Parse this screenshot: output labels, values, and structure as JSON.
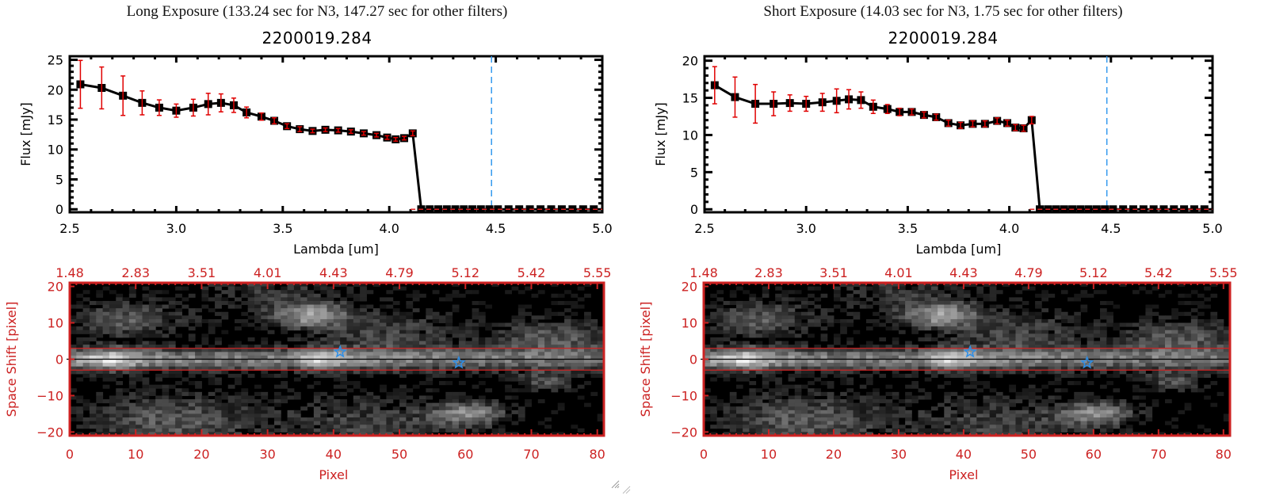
{
  "panels": [
    {
      "id": "long",
      "exposure_title": "Long Exposure (133.24 sec for N3, 147.27 sec for other filters)",
      "object_title": "2200019.284"
    },
    {
      "id": "short",
      "exposure_title": "Short Exposure (14.03 sec for N3, 1.75 sec for other filters)",
      "object_title": "2200019.284"
    }
  ],
  "colors": {
    "axis": "#000000",
    "line": "#000000",
    "marker": "#000000",
    "errorbar": "#e00000",
    "blue_line": "#3399ee",
    "red_dashed": "#dd2222",
    "image_axis": "#cc2222",
    "star": "#2e8ee6"
  },
  "chart_data": [
    {
      "type": "line",
      "panel": "long",
      "title": "2200019.284",
      "xlabel": "Lambda [um]",
      "ylabel": "Flux [mJy]",
      "xlim": [
        2.5,
        5.0
      ],
      "ylim": [
        -0.5,
        25.6
      ],
      "xticks": [
        2.5,
        3.0,
        3.5,
        4.0,
        4.5,
        5.0
      ],
      "xtick_labels": [
        "2.5",
        "3.0",
        "3.5",
        "4.0",
        "4.5",
        "5.0"
      ],
      "yticks": [
        0,
        5,
        10,
        15,
        20,
        25
      ],
      "ytick_labels": [
        "0",
        "5",
        "10",
        "15",
        "20",
        "25"
      ],
      "vline_x": 4.48,
      "hline_y": 0,
      "x": [
        2.55,
        2.65,
        2.75,
        2.84,
        2.92,
        3.0,
        3.08,
        3.15,
        3.21,
        3.27,
        3.33,
        3.4,
        3.46,
        3.52,
        3.58,
        3.64,
        3.7,
        3.76,
        3.82,
        3.88,
        3.94,
        3.99,
        4.03,
        4.07,
        4.11,
        4.15,
        4.19,
        4.23,
        4.27,
        4.31,
        4.35,
        4.39,
        4.43,
        4.47,
        4.51,
        4.56,
        4.61,
        4.66,
        4.71,
        4.76,
        4.81,
        4.86,
        4.91,
        4.96
      ],
      "y": [
        20.9,
        20.3,
        19.0,
        17.8,
        17.0,
        16.5,
        17.0,
        17.6,
        17.8,
        17.4,
        16.2,
        15.5,
        14.8,
        13.9,
        13.4,
        13.1,
        13.3,
        13.2,
        13.0,
        12.7,
        12.4,
        12.0,
        11.7,
        11.9,
        12.7,
        0,
        0,
        0,
        0,
        0,
        0,
        0,
        0,
        0,
        0,
        0,
        0,
        0,
        0,
        0,
        0,
        0,
        0,
        0
      ],
      "yerr": [
        4.0,
        3.5,
        3.3,
        2.0,
        1.3,
        1.1,
        1.4,
        1.8,
        1.5,
        1.2,
        0.9,
        0.6,
        0.5,
        0.4,
        0.4,
        0.3,
        0.3,
        0.3,
        0.3,
        0.3,
        0.3,
        0.3,
        0.3,
        0.3,
        0.4,
        0,
        0,
        0,
        0,
        0,
        0,
        0,
        0,
        0,
        0,
        0,
        0,
        0,
        0,
        0,
        0,
        0,
        0,
        0
      ]
    },
    {
      "type": "line",
      "panel": "short",
      "title": "2200019.284",
      "xlabel": "Lambda [um]",
      "ylabel": "Flux [mJy]",
      "xlim": [
        2.5,
        5.0
      ],
      "ylim": [
        -0.4,
        20.6
      ],
      "xticks": [
        2.5,
        3.0,
        3.5,
        4.0,
        4.5,
        5.0
      ],
      "xtick_labels": [
        "2.5",
        "3.0",
        "3.5",
        "4.0",
        "4.5",
        "5.0"
      ],
      "yticks": [
        0,
        5,
        10,
        15,
        20
      ],
      "ytick_labels": [
        "0",
        "5",
        "10",
        "15",
        "20"
      ],
      "vline_x": 4.48,
      "hline_y": 0,
      "x": [
        2.55,
        2.65,
        2.75,
        2.84,
        2.92,
        3.0,
        3.08,
        3.15,
        3.21,
        3.27,
        3.33,
        3.4,
        3.46,
        3.52,
        3.58,
        3.64,
        3.7,
        3.76,
        3.82,
        3.88,
        3.94,
        3.99,
        4.03,
        4.07,
        4.11,
        4.15,
        4.19,
        4.23,
        4.27,
        4.31,
        4.35,
        4.39,
        4.43,
        4.47,
        4.51,
        4.56,
        4.61,
        4.66,
        4.71,
        4.76,
        4.81,
        4.86,
        4.91,
        4.96
      ],
      "y": [
        16.7,
        15.1,
        14.2,
        14.2,
        14.3,
        14.2,
        14.4,
        14.6,
        14.8,
        14.7,
        13.8,
        13.5,
        13.1,
        13.1,
        12.7,
        12.4,
        11.6,
        11.3,
        11.5,
        11.5,
        11.9,
        11.6,
        11.0,
        10.9,
        12.0,
        0,
        0,
        0,
        0,
        0,
        0,
        0,
        0,
        0,
        0,
        0,
        0,
        0,
        0,
        0,
        0,
        0,
        0,
        0
      ],
      "yerr": [
        2.5,
        2.7,
        2.6,
        1.6,
        1.1,
        1.0,
        1.2,
        1.6,
        1.3,
        1.1,
        0.9,
        0.6,
        0.5,
        0.4,
        0.4,
        0.4,
        0.4,
        0.4,
        0.4,
        0.4,
        0.4,
        0.4,
        0.4,
        0.4,
        0.5,
        0,
        0,
        0,
        0,
        0,
        0,
        0,
        0,
        0,
        0,
        0,
        0,
        0,
        0,
        0,
        0,
        0,
        0,
        0
      ]
    },
    {
      "type": "heatmap",
      "panel": "long",
      "xlabel": "Pixel",
      "ylabel": "Space Shift [pixel]",
      "xlim": [
        0,
        81
      ],
      "ylim": [
        -21,
        21
      ],
      "xticks": [
        0,
        10,
        20,
        30,
        40,
        50,
        60,
        70,
        80
      ],
      "xtick_labels": [
        "0",
        "10",
        "20",
        "30",
        "40",
        "50",
        "60",
        "70",
        "80"
      ],
      "yticks": [
        -20,
        -10,
        0,
        10,
        20
      ],
      "ytick_labels": [
        "-20",
        "-10",
        "0",
        "10",
        "20"
      ],
      "top_tick_labels": [
        "1.48",
        "2.83",
        "3.51",
        "4.01",
        "4.43",
        "4.79",
        "5.12",
        "5.42",
        "5.55"
      ],
      "aperture_lines_y": [
        3,
        -3
      ],
      "center_line_y": 0,
      "stars": [
        {
          "x": 41,
          "y": 2
        },
        {
          "x": 59,
          "y": -1
        }
      ]
    },
    {
      "type": "heatmap",
      "panel": "short",
      "xlabel": "Pixel",
      "ylabel": "Space Shift [pixel]",
      "xlim": [
        0,
        81
      ],
      "ylim": [
        -21,
        21
      ],
      "xticks": [
        0,
        10,
        20,
        30,
        40,
        50,
        60,
        70,
        80
      ],
      "xtick_labels": [
        "0",
        "10",
        "20",
        "30",
        "40",
        "50",
        "60",
        "70",
        "80"
      ],
      "yticks": [
        -20,
        -10,
        0,
        10,
        20
      ],
      "ytick_labels": [
        "-20",
        "-10",
        "0",
        "10",
        "20"
      ],
      "top_tick_labels": [
        "1.48",
        "2.83",
        "3.51",
        "4.01",
        "4.43",
        "4.79",
        "5.12",
        "5.42",
        "5.55"
      ],
      "aperture_lines_y": [
        3,
        -3
      ],
      "center_line_y": 0,
      "stars": [
        {
          "x": 41,
          "y": 2
        },
        {
          "x": 59,
          "y": -1
        }
      ]
    }
  ]
}
